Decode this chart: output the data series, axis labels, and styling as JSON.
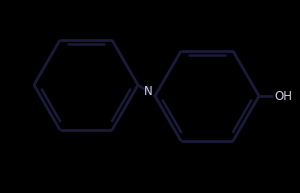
{
  "bg_color": "#000000",
  "line_color": "#1a1a3a",
  "line_width": 2.0,
  "dbo": 0.013,
  "font_size": 8.5,
  "text_color": "#d0d0e8",
  "r1cx": 0.185,
  "r1cy": 0.52,
  "r2cx": 0.635,
  "r2cy": 0.52,
  "rr": 0.155,
  "n_label": "N",
  "oh_label": "OH"
}
